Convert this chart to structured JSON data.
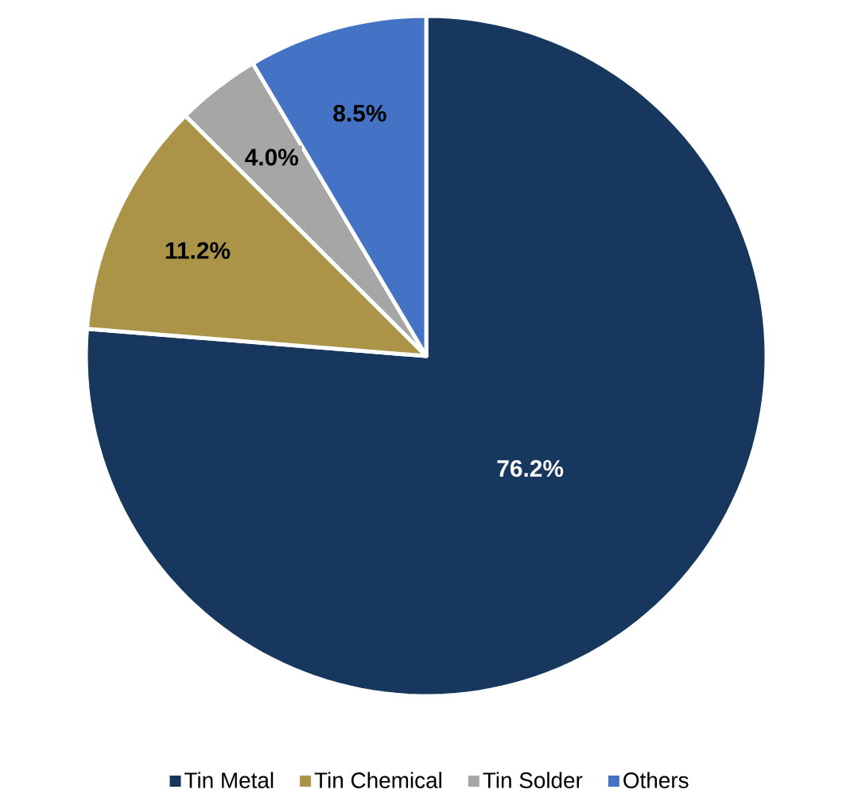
{
  "chart_data": {
    "type": "pie",
    "categories": [
      "Tin Metal",
      "Tin Chemical",
      "Tin Solder",
      "Others"
    ],
    "values": [
      76.2,
      11.2,
      4.0,
      8.5
    ],
    "colors": [
      "#17375e",
      "#ab9448",
      "#a6a6a6",
      "#4472c4"
    ],
    "value_labels": [
      "76.2%",
      "11.2%",
      "4.0%",
      "8.5%"
    ],
    "legend": "bottom"
  }
}
